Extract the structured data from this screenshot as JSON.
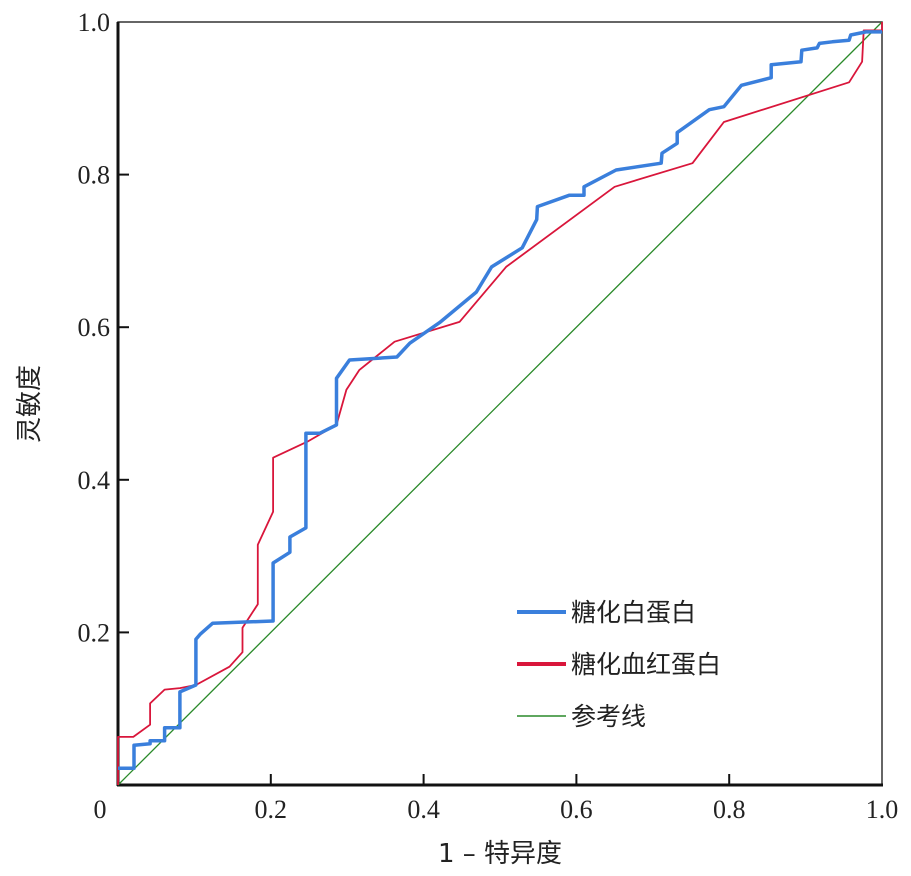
{
  "chart_data": {
    "type": "line",
    "title": "",
    "xlabel": "1 – 特异度",
    "ylabel": "灵敏度",
    "xlim": [
      0,
      1
    ],
    "ylim": [
      0,
      1
    ],
    "x_ticks": [
      "0",
      "0.2",
      "0.4",
      "0.6",
      "0.8",
      "1.0"
    ],
    "x_tick_values": [
      0,
      0.2,
      0.4,
      0.6,
      0.8,
      1.0
    ],
    "y_ticks": [
      "0.2",
      "0.4",
      "0.6",
      "0.8",
      "1.0"
    ],
    "y_tick_values": [
      0.2,
      0.4,
      0.6,
      0.8,
      1.0
    ],
    "grid": false,
    "legend_position": "bottom-right",
    "series": [
      {
        "name": "糖化白蛋白",
        "color": "#3a7fdc",
        "points": [
          [
            0,
            0.022
          ],
          [
            0.021,
            0.022
          ],
          [
            0.021,
            0.052
          ],
          [
            0.042,
            0.054
          ],
          [
            0.042,
            0.058
          ],
          [
            0.061,
            0.058
          ],
          [
            0.061,
            0.075
          ],
          [
            0.081,
            0.075
          ],
          [
            0.081,
            0.122
          ],
          [
            0.102,
            0.131
          ],
          [
            0.102,
            0.191
          ],
          [
            0.108,
            0.198
          ],
          [
            0.124,
            0.212
          ],
          [
            0.203,
            0.215
          ],
          [
            0.203,
            0.291
          ],
          [
            0.225,
            0.305
          ],
          [
            0.225,
            0.325
          ],
          [
            0.246,
            0.337
          ],
          [
            0.246,
            0.461
          ],
          [
            0.264,
            0.461
          ],
          [
            0.286,
            0.472
          ],
          [
            0.286,
            0.533
          ],
          [
            0.303,
            0.557
          ],
          [
            0.365,
            0.561
          ],
          [
            0.382,
            0.579
          ],
          [
            0.421,
            0.606
          ],
          [
            0.469,
            0.646
          ],
          [
            0.489,
            0.679
          ],
          [
            0.529,
            0.704
          ],
          [
            0.548,
            0.741
          ],
          [
            0.549,
            0.758
          ],
          [
            0.591,
            0.773
          ],
          [
            0.61,
            0.773
          ],
          [
            0.61,
            0.784
          ],
          [
            0.652,
            0.806
          ],
          [
            0.711,
            0.815
          ],
          [
            0.712,
            0.828
          ],
          [
            0.732,
            0.841
          ],
          [
            0.732,
            0.855
          ],
          [
            0.774,
            0.885
          ],
          [
            0.793,
            0.889
          ],
          [
            0.816,
            0.917
          ],
          [
            0.855,
            0.927
          ],
          [
            0.855,
            0.944
          ],
          [
            0.894,
            0.948
          ],
          [
            0.895,
            0.963
          ],
          [
            0.915,
            0.966
          ],
          [
            0.918,
            0.972
          ],
          [
            0.935,
            0.974
          ],
          [
            0.957,
            0.976
          ],
          [
            0.959,
            0.983
          ],
          [
            0.979,
            0.987
          ],
          [
            1.0,
            0.987
          ]
        ]
      },
      {
        "name": "糖化血红蛋白",
        "color": "#d9163b",
        "points": [
          [
            0,
            0
          ],
          [
            0,
            0.063
          ],
          [
            0.02,
            0.063
          ],
          [
            0.042,
            0.079
          ],
          [
            0.042,
            0.107
          ],
          [
            0.061,
            0.125
          ],
          [
            0.081,
            0.127
          ],
          [
            0.102,
            0.131
          ],
          [
            0.146,
            0.155
          ],
          [
            0.163,
            0.174
          ],
          [
            0.163,
            0.206
          ],
          [
            0.183,
            0.237
          ],
          [
            0.183,
            0.315
          ],
          [
            0.203,
            0.358
          ],
          [
            0.203,
            0.429
          ],
          [
            0.248,
            0.45
          ],
          [
            0.286,
            0.472
          ],
          [
            0.299,
            0.518
          ],
          [
            0.316,
            0.544
          ],
          [
            0.362,
            0.581
          ],
          [
            0.447,
            0.607
          ],
          [
            0.508,
            0.679
          ],
          [
            0.65,
            0.784
          ],
          [
            0.752,
            0.815
          ],
          [
            0.793,
            0.869
          ],
          [
            0.957,
            0.921
          ],
          [
            0.974,
            0.948
          ],
          [
            0.976,
            0.989
          ],
          [
            1.0,
            0.989
          ],
          [
            1.0,
            1.0
          ]
        ]
      },
      {
        "name": "参考线",
        "color": "#2a8a2a",
        "points": [
          [
            0,
            0
          ],
          [
            1,
            1
          ]
        ]
      }
    ]
  }
}
